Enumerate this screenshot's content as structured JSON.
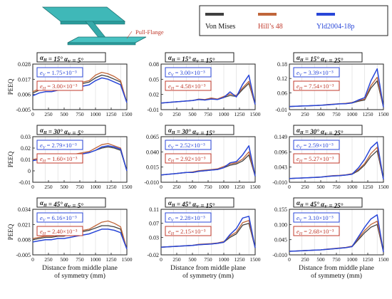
{
  "beam": {
    "flange_label": "Pull-Flange"
  },
  "legend": [
    {
      "name": "Von Mises",
      "color": "#404040",
      "text_color": "#111111"
    },
    {
      "name": "Hill’s 48",
      "color": "#c0663a",
      "text_color": "#c0392b"
    },
    {
      "name": "Yld2004-18p",
      "color": "#2846d8",
      "text_color": "#2846d8"
    }
  ],
  "colors": {
    "vonmises": "#404040",
    "hill": "#c0663a",
    "yld": "#2846d8",
    "ev_box": "#2846d8",
    "eh_box": "#c0392b"
  },
  "chart_data": [
    {
      "type": "line",
      "title": "αH = 15°   αV = 5°",
      "aH": "15°",
      "aV": "5°",
      "ylabel": "PEEQ",
      "ylim": [
        -0.005,
        0.028
      ],
      "yticks": [
        "-0.005",
        "0.006",
        "0.017",
        "0.028"
      ],
      "ev": "1.75×10⁻³",
      "eh": "3.00×10⁻³",
      "xlabel": "",
      "x": [
        0,
        100,
        200,
        300,
        400,
        500,
        600,
        700,
        800,
        900,
        1000,
        1100,
        1200,
        1300,
        1400,
        1500
      ],
      "series": [
        {
          "name": "Von Mises",
          "values": [
            0.007,
            0.009,
            0.01,
            0.01,
            0.011,
            0.011,
            0.013,
            0.013,
            0.014,
            0.015,
            0.018,
            0.02,
            0.019,
            0.017,
            0.015,
            0.0
          ]
        },
        {
          "name": "Hill’s 48",
          "values": [
            0.008,
            0.01,
            0.011,
            0.011,
            0.012,
            0.012,
            0.014,
            0.014,
            0.015,
            0.016,
            0.02,
            0.022,
            0.021,
            0.019,
            0.016,
            0.0
          ]
        },
        {
          "name": "Yld2004-18p",
          "values": [
            0.005,
            0.007,
            0.008,
            0.008,
            0.009,
            0.009,
            0.011,
            0.011,
            0.012,
            0.013,
            0.016,
            0.018,
            0.017,
            0.015,
            0.013,
            0.0
          ]
        }
      ]
    },
    {
      "type": "line",
      "title": "αH = 15°   αV = 15°",
      "aH": "15°",
      "aV": "15°",
      "ylabel": "",
      "ylim": [
        -0.01,
        0.08
      ],
      "yticks": [
        "-0.01",
        "0.02",
        "0.05",
        "0.08"
      ],
      "ev": "3.00×10⁻³",
      "eh": "4.58×10⁻³",
      "xlabel": "",
      "x": [
        0,
        100,
        200,
        300,
        400,
        500,
        600,
        700,
        800,
        900,
        1000,
        1100,
        1200,
        1300,
        1400,
        1500
      ],
      "series": [
        {
          "name": "Von Mises",
          "values": [
            0.003,
            0.004,
            0.005,
            0.006,
            0.007,
            0.008,
            0.01,
            0.009,
            0.012,
            0.01,
            0.014,
            0.018,
            0.016,
            0.03,
            0.042,
            0.0
          ]
        },
        {
          "name": "Hill’s 48",
          "values": [
            0.003,
            0.004,
            0.005,
            0.006,
            0.007,
            0.008,
            0.011,
            0.01,
            0.013,
            0.011,
            0.016,
            0.021,
            0.018,
            0.033,
            0.046,
            0.0
          ]
        },
        {
          "name": "Yld2004-18p",
          "values": [
            0.003,
            0.004,
            0.005,
            0.006,
            0.007,
            0.008,
            0.01,
            0.009,
            0.011,
            0.01,
            0.014,
            0.025,
            0.015,
            0.04,
            0.058,
            0.0
          ]
        }
      ]
    },
    {
      "type": "line",
      "title": "αH = 15°   αV = 25°",
      "aH": "15°",
      "aV": "25°",
      "ylabel": "",
      "ylim": [
        -0.01,
        0.18
      ],
      "yticks": [
        "-0.01",
        "0.06",
        "0.12",
        "0.18"
      ],
      "ev": "3.39×10⁻³",
      "eh": "7.54×10⁻³",
      "xlabel": "",
      "x": [
        0,
        100,
        200,
        300,
        400,
        500,
        600,
        700,
        800,
        900,
        1000,
        1100,
        1200,
        1300,
        1400,
        1500
      ],
      "series": [
        {
          "name": "Von Mises",
          "values": [
            0.003,
            0.004,
            0.005,
            0.006,
            0.007,
            0.008,
            0.01,
            0.012,
            0.014,
            0.015,
            0.018,
            0.025,
            0.03,
            0.08,
            0.11,
            0.0
          ]
        },
        {
          "name": "Hill’s 48",
          "values": [
            0.003,
            0.004,
            0.005,
            0.006,
            0.007,
            0.008,
            0.011,
            0.013,
            0.015,
            0.016,
            0.02,
            0.028,
            0.034,
            0.09,
            0.125,
            0.0
          ]
        },
        {
          "name": "Yld2004-18p",
          "values": [
            0.003,
            0.004,
            0.005,
            0.006,
            0.007,
            0.008,
            0.01,
            0.012,
            0.014,
            0.015,
            0.018,
            0.03,
            0.04,
            0.11,
            0.16,
            0.0
          ]
        }
      ]
    },
    {
      "type": "line",
      "title": "αH = 30°   αV = 5°",
      "aH": "30°",
      "aV": "5°",
      "ylabel": "PEEQ",
      "ylim": [
        -0.01,
        0.03
      ],
      "yticks": [
        "-0.01",
        "0",
        "0.01",
        "0.02",
        "0.03"
      ],
      "ev": "2.79×10⁻³",
      "eh": "1.60×10⁻³",
      "xlabel": "",
      "x": [
        0,
        100,
        200,
        300,
        400,
        500,
        600,
        700,
        800,
        900,
        1000,
        1100,
        1200,
        1300,
        1400,
        1500
      ],
      "series": [
        {
          "name": "Von Mises",
          "values": [
            0.009,
            0.01,
            0.011,
            0.011,
            0.012,
            0.012,
            0.013,
            0.014,
            0.015,
            0.016,
            0.018,
            0.02,
            0.021,
            0.02,
            0.018,
            0.0
          ]
        },
        {
          "name": "Hill’s 48",
          "values": [
            0.01,
            0.011,
            0.012,
            0.012,
            0.013,
            0.013,
            0.014,
            0.015,
            0.016,
            0.017,
            0.02,
            0.023,
            0.024,
            0.022,
            0.02,
            0.0
          ]
        },
        {
          "name": "Yld2004-18p",
          "values": [
            0.009,
            0.01,
            0.011,
            0.011,
            0.012,
            0.012,
            0.013,
            0.014,
            0.015,
            0.016,
            0.018,
            0.021,
            0.022,
            0.021,
            0.019,
            0.0
          ]
        }
      ]
    },
    {
      "type": "line",
      "title": "αH = 30°   αV = 15°",
      "aH": "30°",
      "aV": "15°",
      "ylabel": "",
      "ylim": [
        -0.01,
        0.065
      ],
      "yticks": [
        "-0.010",
        "0.015",
        "0.040",
        "0.065"
      ],
      "ev": "2.52×10⁻³",
      "eh": "2.92×10⁻³",
      "xlabel": "",
      "x": [
        0,
        100,
        200,
        300,
        400,
        500,
        600,
        700,
        800,
        900,
        1000,
        1100,
        1200,
        1300,
        1400,
        1500
      ],
      "series": [
        {
          "name": "Von Mises",
          "values": [
            0.002,
            0.003,
            0.004,
            0.005,
            0.006,
            0.006,
            0.008,
            0.009,
            0.01,
            0.011,
            0.014,
            0.018,
            0.02,
            0.025,
            0.035,
            0.0
          ]
        },
        {
          "name": "Hill’s 48",
          "values": [
            0.002,
            0.003,
            0.004,
            0.005,
            0.006,
            0.007,
            0.009,
            0.01,
            0.011,
            0.012,
            0.016,
            0.02,
            0.022,
            0.028,
            0.04,
            0.0
          ]
        },
        {
          "name": "Yld2004-18p",
          "values": [
            0.002,
            0.003,
            0.004,
            0.005,
            0.006,
            0.006,
            0.008,
            0.009,
            0.01,
            0.011,
            0.014,
            0.022,
            0.024,
            0.035,
            0.05,
            0.0
          ]
        }
      ]
    },
    {
      "type": "line",
      "title": "αH = 30°   αV = 25°",
      "aH": "30°",
      "aV": "25°",
      "ylabel": "",
      "ylim": [
        -0.01,
        0.149
      ],
      "yticks": [
        "-0.010",
        "0.043",
        "0.096",
        "0.149"
      ],
      "ev": "2.59×10⁻³",
      "eh": "5.27×10⁻³",
      "xlabel": "",
      "x": [
        0,
        100,
        200,
        300,
        400,
        500,
        600,
        700,
        800,
        900,
        1000,
        1100,
        1200,
        1300,
        1400,
        1500
      ],
      "series": [
        {
          "name": "Von Mises",
          "values": [
            0.003,
            0.004,
            0.005,
            0.006,
            0.007,
            0.008,
            0.01,
            0.012,
            0.013,
            0.015,
            0.018,
            0.03,
            0.05,
            0.08,
            0.1,
            0.0
          ]
        },
        {
          "name": "Hill’s 48",
          "values": [
            0.003,
            0.004,
            0.005,
            0.006,
            0.007,
            0.008,
            0.011,
            0.013,
            0.014,
            0.016,
            0.02,
            0.034,
            0.055,
            0.09,
            0.112,
            0.0
          ]
        },
        {
          "name": "Yld2004-18p",
          "values": [
            0.003,
            0.004,
            0.005,
            0.006,
            0.007,
            0.008,
            0.01,
            0.012,
            0.013,
            0.015,
            0.018,
            0.04,
            0.07,
            0.11,
            0.13,
            0.0
          ]
        }
      ]
    },
    {
      "type": "line",
      "title": "αH = 45°   αV = 5°",
      "aH": "45°",
      "aV": "5°",
      "ylabel": "PEEQ",
      "ylim": [
        -0.005,
        0.034
      ],
      "yticks": [
        "-0.005",
        "0.008",
        "0.021",
        "0.034"
      ],
      "ev": "6.16×10⁻³",
      "eh": "2.40×10⁻³",
      "xlabel": "Distance from middle plane of symmetry (mm)",
      "x": [
        0,
        100,
        200,
        300,
        400,
        500,
        600,
        700,
        800,
        900,
        1000,
        1100,
        1200,
        1300,
        1400,
        1500
      ],
      "series": [
        {
          "name": "Von Mises",
          "values": [
            0.008,
            0.009,
            0.01,
            0.01,
            0.011,
            0.011,
            0.013,
            0.014,
            0.015,
            0.016,
            0.018,
            0.02,
            0.02,
            0.019,
            0.017,
            0.0
          ]
        },
        {
          "name": "Hill’s 48",
          "values": [
            0.009,
            0.01,
            0.011,
            0.011,
            0.012,
            0.012,
            0.014,
            0.015,
            0.016,
            0.017,
            0.02,
            0.023,
            0.024,
            0.022,
            0.019,
            0.0
          ]
        },
        {
          "name": "Yld2004-18p",
          "values": [
            0.006,
            0.007,
            0.008,
            0.008,
            0.009,
            0.009,
            0.01,
            0.011,
            0.012,
            0.013,
            0.015,
            0.017,
            0.017,
            0.016,
            0.014,
            0.0
          ]
        }
      ]
    },
    {
      "type": "line",
      "title": "αH = 45°   αV = 15°",
      "aH": "45°",
      "aV": "15°",
      "ylabel": "",
      "ylim": [
        -0.02,
        0.11
      ],
      "yticks": [
        "-0.02",
        "0.03",
        "0.07",
        "0.11"
      ],
      "ev": "2.28×10⁻³",
      "eh": "2.15×10⁻³",
      "xlabel": "Distance from middle plane of symmetry (mm)",
      "x": [
        0,
        100,
        200,
        300,
        400,
        500,
        600,
        700,
        800,
        900,
        1000,
        1100,
        1200,
        1300,
        1400,
        1500
      ],
      "series": [
        {
          "name": "Von Mises",
          "values": [
            0.002,
            0.003,
            0.004,
            0.005,
            0.006,
            0.007,
            0.009,
            0.01,
            0.011,
            0.013,
            0.016,
            0.03,
            0.04,
            0.065,
            0.07,
            0.0
          ]
        },
        {
          "name": "Hill’s 48",
          "values": [
            0.002,
            0.003,
            0.004,
            0.005,
            0.006,
            0.007,
            0.01,
            0.011,
            0.012,
            0.014,
            0.018,
            0.034,
            0.045,
            0.072,
            0.078,
            0.0
          ]
        },
        {
          "name": "Yld2004-18p",
          "values": [
            0.002,
            0.003,
            0.004,
            0.005,
            0.006,
            0.007,
            0.009,
            0.01,
            0.011,
            0.013,
            0.016,
            0.038,
            0.055,
            0.085,
            0.09,
            0.0
          ]
        }
      ]
    },
    {
      "type": "line",
      "title": "αH = 45°   αV = 25°",
      "aH": "45°",
      "aV": "25°",
      "ylabel": "",
      "ylim": [
        -0.01,
        0.155
      ],
      "yticks": [
        "-0.010",
        "0.045",
        "0.100",
        "0.155"
      ],
      "ev": "3.10×10⁻³",
      "eh": "2.68×10⁻³",
      "xlabel": "Distance from middle plane of symmetry (mm)",
      "x": [
        0,
        100,
        200,
        300,
        400,
        500,
        600,
        700,
        800,
        900,
        1000,
        1100,
        1200,
        1300,
        1400,
        1500
      ],
      "series": [
        {
          "name": "Von Mises",
          "values": [
            0.003,
            0.004,
            0.005,
            0.006,
            0.007,
            0.008,
            0.01,
            0.012,
            0.014,
            0.016,
            0.02,
            0.045,
            0.07,
            0.09,
            0.1,
            0.0
          ]
        },
        {
          "name": "Hill’s 48",
          "values": [
            0.003,
            0.004,
            0.005,
            0.006,
            0.007,
            0.008,
            0.011,
            0.013,
            0.015,
            0.017,
            0.022,
            0.05,
            0.078,
            0.1,
            0.112,
            0.0
          ]
        },
        {
          "name": "Yld2004-18p",
          "values": [
            0.003,
            0.004,
            0.005,
            0.006,
            0.007,
            0.008,
            0.01,
            0.012,
            0.014,
            0.016,
            0.02,
            0.055,
            0.09,
            0.12,
            0.135,
            0.0
          ]
        }
      ]
    }
  ],
  "xticks": [
    "0",
    "250",
    "500",
    "750",
    "1000",
    "1250",
    "1500"
  ],
  "xlabel_lines": [
    "Distance from middle plane",
    "of symmetry (mm)"
  ]
}
